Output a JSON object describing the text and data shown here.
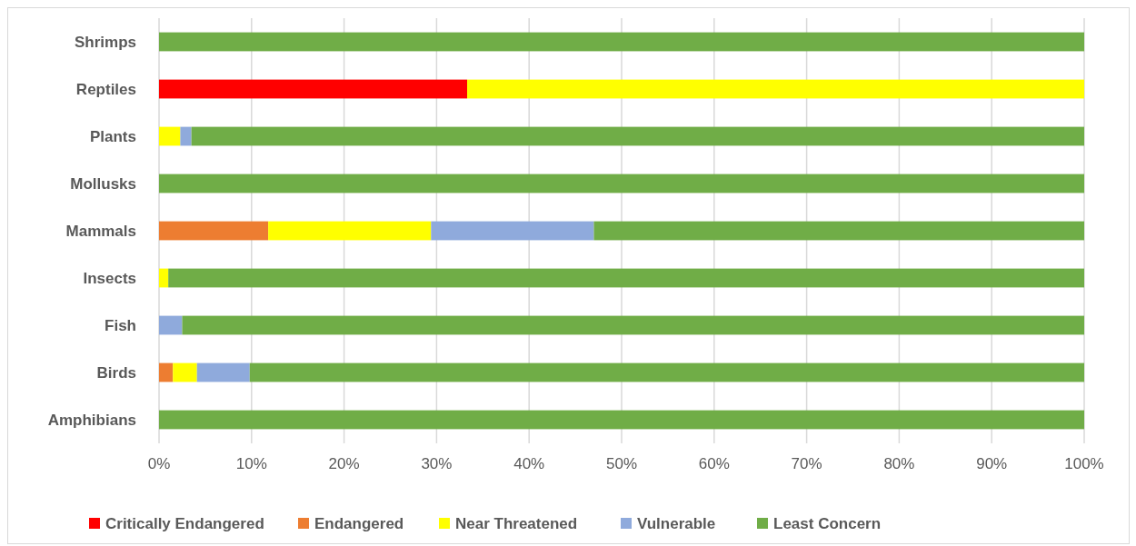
{
  "chart_data": {
    "type": "bar",
    "orientation": "horizontal",
    "stacked": true,
    "categories": [
      "Shrimps",
      "Reptiles",
      "Plants",
      "Mollusks",
      "Mammals",
      "Insects",
      "Fish",
      "Birds",
      "Amphibians"
    ],
    "series": [
      {
        "name": "Critically Endangered",
        "color": "#ff0000",
        "values": [
          0,
          33.3,
          0,
          0,
          0,
          0,
          0,
          0,
          0
        ]
      },
      {
        "name": "Endangered",
        "color": "#ed7d31",
        "values": [
          0,
          0,
          0,
          0,
          11.8,
          0,
          0,
          1.5,
          0
        ]
      },
      {
        "name": "Near Threatened",
        "color": "#ffff00",
        "values": [
          0,
          66.7,
          2.3,
          0,
          17.6,
          1,
          0,
          2.6,
          0
        ]
      },
      {
        "name": "Vulnerable",
        "color": "#8faadc",
        "values": [
          0,
          0,
          1.2,
          0,
          17.6,
          0,
          2.5,
          5.7,
          0
        ]
      },
      {
        "name": "Least Concern",
        "color": "#70ad47",
        "values": [
          100,
          0,
          96.5,
          100,
          53,
          99,
          97.5,
          90.2,
          100
        ]
      }
    ],
    "xlim": [
      0,
      100
    ],
    "xticks": [
      {
        "value": 0,
        "label": "0%"
      },
      {
        "value": 10,
        "label": "10%"
      },
      {
        "value": 20,
        "label": "20%"
      },
      {
        "value": 30,
        "label": "30%"
      },
      {
        "value": 40,
        "label": "40%"
      },
      {
        "value": 50,
        "label": "50%"
      },
      {
        "value": 60,
        "label": "60%"
      },
      {
        "value": 70,
        "label": "70%"
      },
      {
        "value": 80,
        "label": "80%"
      },
      {
        "value": 90,
        "label": "90%"
      },
      {
        "value": 100,
        "label": "100%"
      }
    ],
    "grid": "x",
    "legend": "bottom"
  }
}
